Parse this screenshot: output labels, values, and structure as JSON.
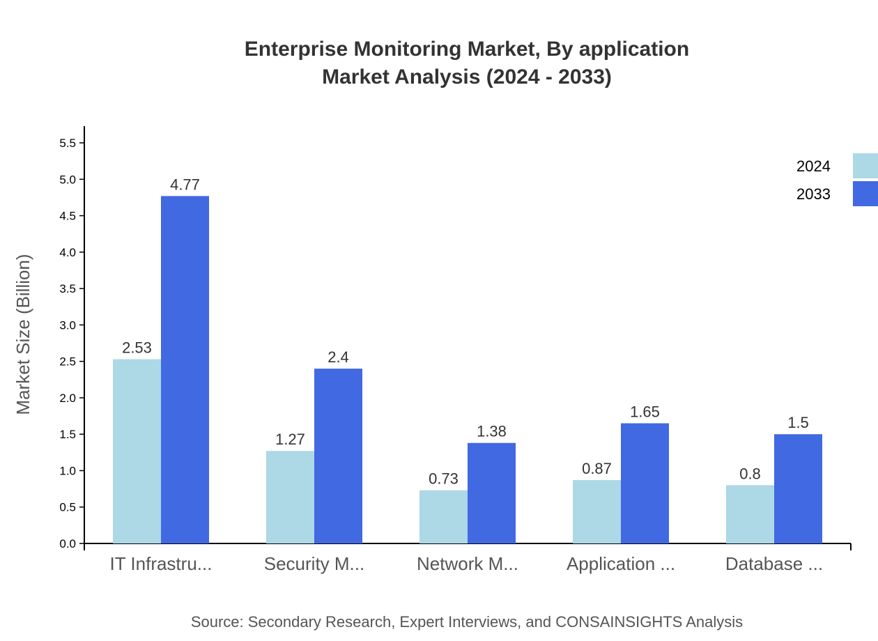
{
  "chart_data": {
    "type": "bar",
    "title": "Enterprise Monitoring Market, By application",
    "subtitle": "Market Analysis (2024 - 2033)",
    "xlabel": "",
    "ylabel": "Market Size (Billion)",
    "categories": [
      "IT Infrastru...",
      "Security M...",
      "Network M...",
      "Application ...",
      "Database ..."
    ],
    "series": [
      {
        "name": "2024",
        "color": "#add8e6",
        "values": [
          2.53,
          1.27,
          0.73,
          0.87,
          0.8
        ],
        "labels": [
          "2.53",
          "1.27",
          "0.73",
          "0.87",
          "0.8"
        ]
      },
      {
        "name": "2033",
        "color": "#4169e1",
        "values": [
          4.77,
          2.4,
          1.38,
          1.65,
          1.5
        ],
        "labels": [
          "4.77",
          "2.4",
          "1.38",
          "1.65",
          "1.5"
        ]
      }
    ],
    "yticks": [
      "0.0",
      "0.5",
      "1.0",
      "1.5",
      "2.0",
      "2.5",
      "3.0",
      "3.5",
      "4.0",
      "4.5",
      "5.0",
      "5.5"
    ],
    "ylim": [
      0,
      5.73
    ],
    "grid": false,
    "legend": "top-right",
    "source": "Source: Secondary Research, Expert Interviews, and CONSAINSIGHTS Analysis"
  }
}
